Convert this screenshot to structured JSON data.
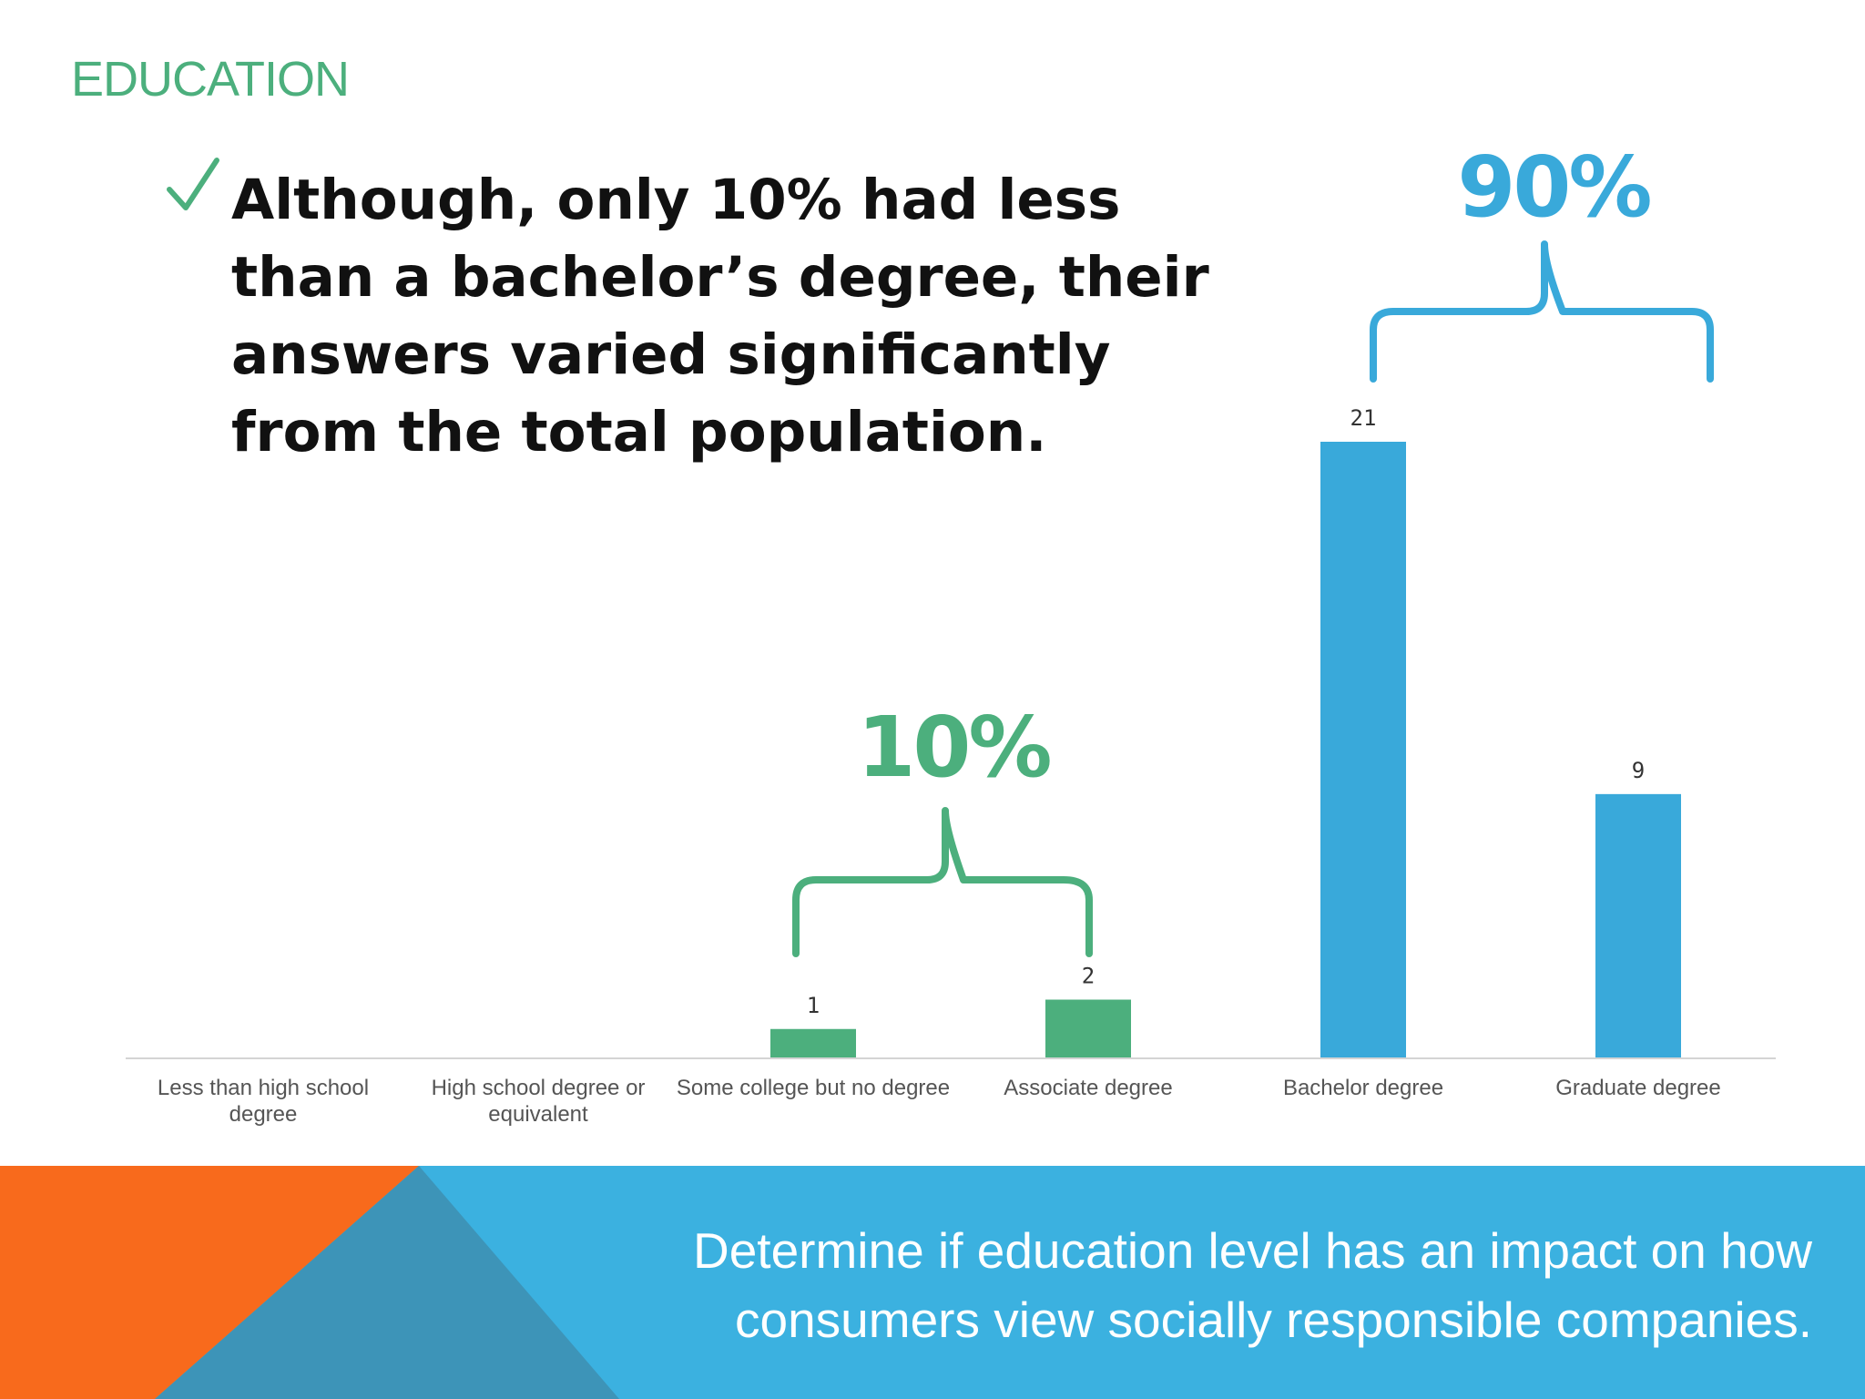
{
  "slide": {
    "title": "EDUCATION",
    "bullet_text": "Although, only 10% had less than a bachelor’s degree, their answers varied significantly from the total population.",
    "bullet_lines": [
      "Although, only 10% had less",
      "than a bachelor’s degree, their",
      "answers varied significantly",
      "from the total population."
    ],
    "footer_text": "Determine if education level has an impact on how consumers view socially responsible companies."
  },
  "annotations": {
    "low_group_pct": "10%",
    "high_group_pct": "90%"
  },
  "colors": {
    "accent_green": "#4caf7d",
    "accent_blue": "#39a9da",
    "orange": "#f86a1c",
    "footer_blue": "#3bb1e0",
    "footer_dark_blue": "#3d94b8",
    "label_gray": "#555555"
  },
  "icons": {
    "bullet": "checkmark-icon"
  },
  "chart_data": {
    "type": "bar",
    "categories": [
      "Less than high school degree",
      "High school degree or equivalent",
      "Some college but no degree",
      "Associate degree",
      "Bachelor degree",
      "Graduate degree"
    ],
    "category_lines": [
      [
        "Less than high school",
        "degree"
      ],
      [
        "High school degree or",
        "equivalent"
      ],
      [
        "Some college but no degree"
      ],
      [
        "Associate degree"
      ],
      [
        "Bachelor degree"
      ],
      [
        "Graduate degree"
      ]
    ],
    "values": [
      0,
      0,
      1,
      2,
      21,
      9
    ],
    "data_labels": [
      "",
      "",
      "1",
      "2",
      "21",
      "9"
    ],
    "bar_colors": [
      "#4caf7d",
      "#4caf7d",
      "#4caf7d",
      "#4caf7d",
      "#39a9da",
      "#39a9da"
    ],
    "ylim": [
      0,
      21
    ],
    "grid": false,
    "legend": "none",
    "title": "",
    "xlabel": "",
    "ylabel": ""
  }
}
